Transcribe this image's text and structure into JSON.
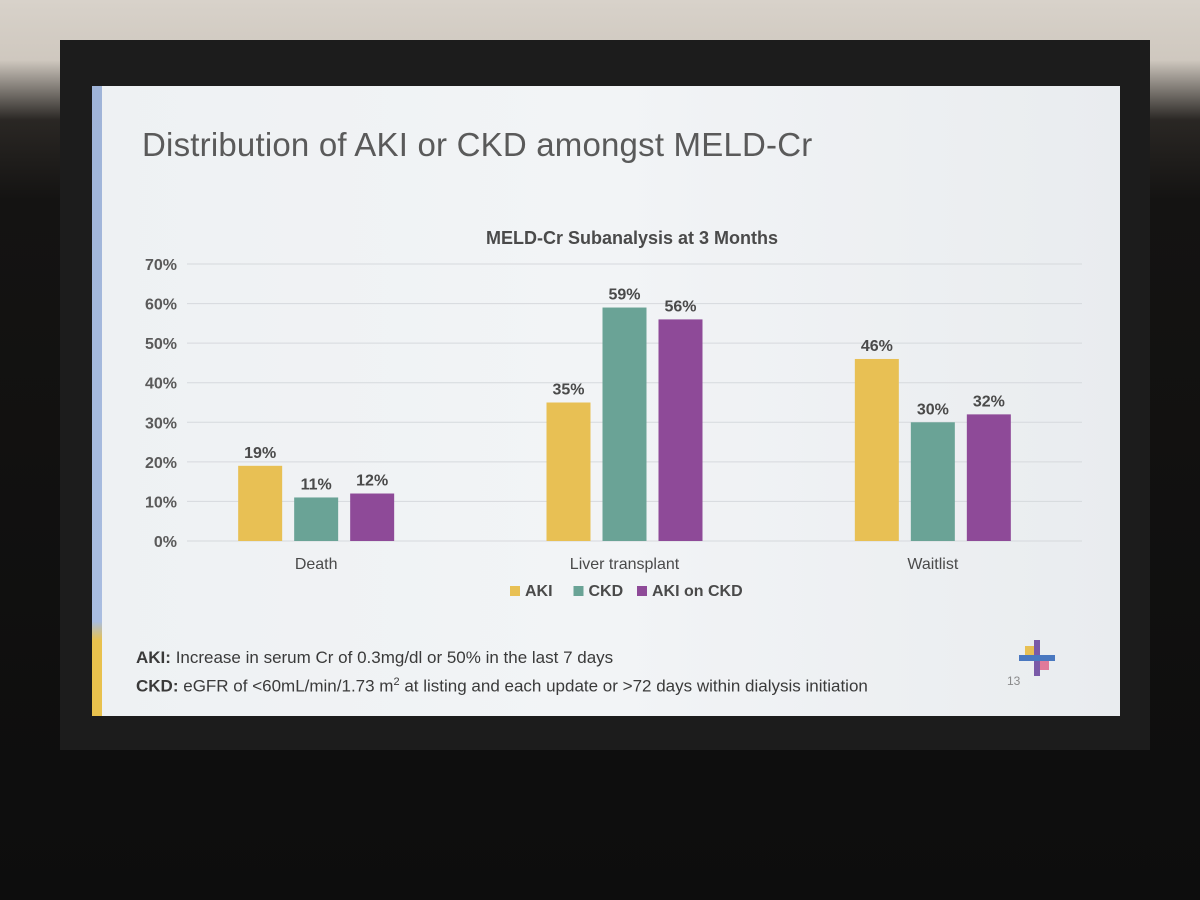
{
  "slide": {
    "title": "Distribution of AKI or CKD amongst MELD-Cr",
    "page_number": "13",
    "footnote_aki_label": "AKI:",
    "footnote_aki_text": "Increase in serum Cr of 0.3mg/dl or 50% in the last 7 days",
    "footnote_ckd_label": "CKD:",
    "footnote_ckd_text_a": "eGFR of <60mL/min/1.73 m",
    "footnote_ckd_sup": "2",
    "footnote_ckd_text_b": " at listing and each update or >72 days within dialysis initiation"
  },
  "chart_data": {
    "type": "bar",
    "title": "MELD-Cr Subanalysis at 3 Months",
    "categories": [
      "Death",
      "Liver transplant",
      "Waitlist"
    ],
    "series": [
      {
        "name": "AKI",
        "values": [
          19,
          35,
          46
        ],
        "color": "#e8c054"
      },
      {
        "name": "CKD",
        "values": [
          11,
          59,
          30
        ],
        "color": "#6aa396"
      },
      {
        "name": "AKI on CKD",
        "values": [
          12,
          56,
          32
        ],
        "color": "#8e4a98"
      }
    ],
    "y_ticks": [
      "0%",
      "10%",
      "20%",
      "30%",
      "40%",
      "50%",
      "60%",
      "70%"
    ],
    "ylim": [
      0,
      70
    ],
    "value_suffix": "%",
    "legend_position": "bottom",
    "grid": true
  }
}
